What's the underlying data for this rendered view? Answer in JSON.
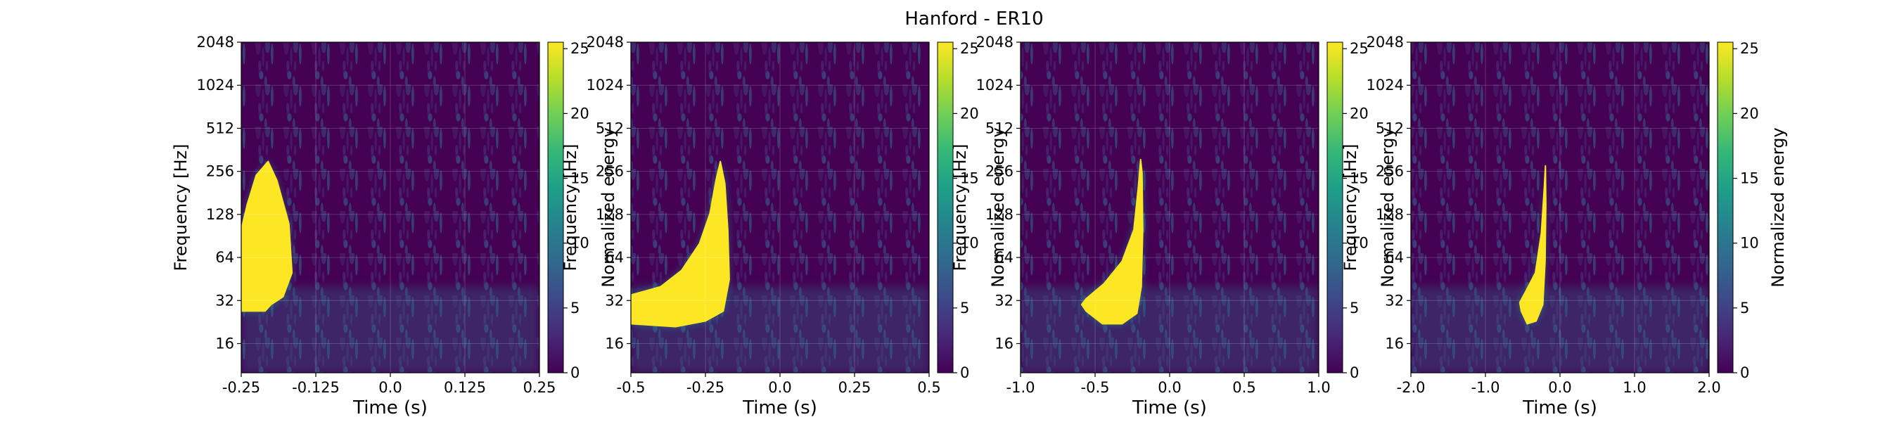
{
  "figure": {
    "title": "Hanford - ER10"
  },
  "chart_data": [
    {
      "type": "heatmap",
      "xlabel": "Time (s)",
      "ylabel": "Frequency [Hz]",
      "x_ticks": [
        "-0.25",
        "-0.125",
        "0.0",
        "0.125",
        "0.25"
      ],
      "xlim": [
        -0.25,
        0.25
      ],
      "y_ticks": [
        "16",
        "32",
        "64",
        "128",
        "256",
        "512",
        "1024",
        "2048"
      ],
      "ylim": [
        10,
        2048
      ],
      "y_scale": "log2",
      "colorbar": {
        "label": "Normalized energy",
        "ticks": [
          "0",
          "5",
          "10",
          "15",
          "20",
          "25"
        ],
        "range": [
          0,
          25.5
        ]
      },
      "blob": [
        [
          -0.25,
          27
        ],
        [
          -0.21,
          27
        ],
        [
          -0.2,
          30
        ],
        [
          -0.18,
          34
        ],
        [
          -0.165,
          50
        ],
        [
          -0.17,
          110
        ],
        [
          -0.19,
          220
        ],
        [
          -0.205,
          300
        ],
        [
          -0.225,
          240
        ],
        [
          -0.24,
          150
        ],
        [
          -0.25,
          100
        ]
      ]
    },
    {
      "type": "heatmap",
      "xlabel": "Time (s)",
      "ylabel": "Frequency [Hz]",
      "x_ticks": [
        "-0.5",
        "-0.25",
        "0.0",
        "0.25",
        "0.5"
      ],
      "xlim": [
        -0.5,
        0.5
      ],
      "y_ticks": [
        "16",
        "32",
        "64",
        "128",
        "256",
        "512",
        "1024",
        "2048"
      ],
      "ylim": [
        10,
        2048
      ],
      "y_scale": "log2",
      "colorbar": {
        "label": "Normalized energy",
        "ticks": [
          "0",
          "5",
          "10",
          "15",
          "20",
          "25"
        ],
        "range": [
          0,
          25.5
        ]
      },
      "blob": [
        [
          -0.5,
          22
        ],
        [
          -0.35,
          21
        ],
        [
          -0.25,
          23
        ],
        [
          -0.19,
          27
        ],
        [
          -0.17,
          45
        ],
        [
          -0.175,
          100
        ],
        [
          -0.185,
          210
        ],
        [
          -0.2,
          300
        ],
        [
          -0.215,
          220
        ],
        [
          -0.235,
          130
        ],
        [
          -0.27,
          80
        ],
        [
          -0.33,
          52
        ],
        [
          -0.4,
          40
        ],
        [
          -0.5,
          35
        ]
      ]
    },
    {
      "type": "heatmap",
      "xlabel": "Time (s)",
      "ylabel": "Frequency [Hz]",
      "x_ticks": [
        "-1.0",
        "-0.5",
        "0.0",
        "0.5",
        "1.0"
      ],
      "xlim": [
        -1.0,
        1.0
      ],
      "y_ticks": [
        "16",
        "32",
        "64",
        "128",
        "256",
        "512",
        "1024",
        "2048"
      ],
      "ylim": [
        10,
        2048
      ],
      "y_scale": "log2",
      "colorbar": {
        "label": "Normalized energy",
        "ticks": [
          "0",
          "5",
          "10",
          "15",
          "20",
          "25"
        ],
        "range": [
          0,
          25.5
        ]
      },
      "blob": [
        [
          -0.56,
          27
        ],
        [
          -0.45,
          22
        ],
        [
          -0.32,
          22
        ],
        [
          -0.22,
          26
        ],
        [
          -0.19,
          40
        ],
        [
          -0.18,
          100
        ],
        [
          -0.185,
          250
        ],
        [
          -0.195,
          310
        ],
        [
          -0.21,
          200
        ],
        [
          -0.24,
          100
        ],
        [
          -0.32,
          60
        ],
        [
          -0.44,
          42
        ],
        [
          -0.56,
          33
        ],
        [
          -0.59,
          30
        ]
      ]
    },
    {
      "type": "heatmap",
      "xlabel": "Time (s)",
      "ylabel": "Frequency [Hz]",
      "x_ticks": [
        "-2.0",
        "-1.0",
        "0.0",
        "1.0",
        "2.0"
      ],
      "xlim": [
        -2.0,
        2.0
      ],
      "y_ticks": [
        "16",
        "32",
        "64",
        "128",
        "256",
        "512",
        "1024",
        "2048"
      ],
      "ylim": [
        10,
        2048
      ],
      "y_scale": "log2",
      "colorbar": {
        "label": "Normalized energy",
        "ticks": [
          "0",
          "5",
          "10",
          "15",
          "20",
          "25"
        ],
        "range": [
          0,
          25.5
        ]
      },
      "blob": [
        [
          -0.52,
          27
        ],
        [
          -0.44,
          22
        ],
        [
          -0.32,
          23
        ],
        [
          -0.23,
          30
        ],
        [
          -0.2,
          60
        ],
        [
          -0.19,
          150
        ],
        [
          -0.195,
          280
        ],
        [
          -0.21,
          200
        ],
        [
          -0.25,
          95
        ],
        [
          -0.33,
          50
        ],
        [
          -0.46,
          37
        ],
        [
          -0.54,
          31
        ]
      ]
    }
  ],
  "colors": {
    "background": "#440154",
    "blob": "#fde725",
    "viridis": [
      "#440154",
      "#482878",
      "#3e4989",
      "#31688e",
      "#26828e",
      "#1f9e89",
      "#35b779",
      "#6ece58",
      "#b5de2b",
      "#fde725"
    ]
  }
}
